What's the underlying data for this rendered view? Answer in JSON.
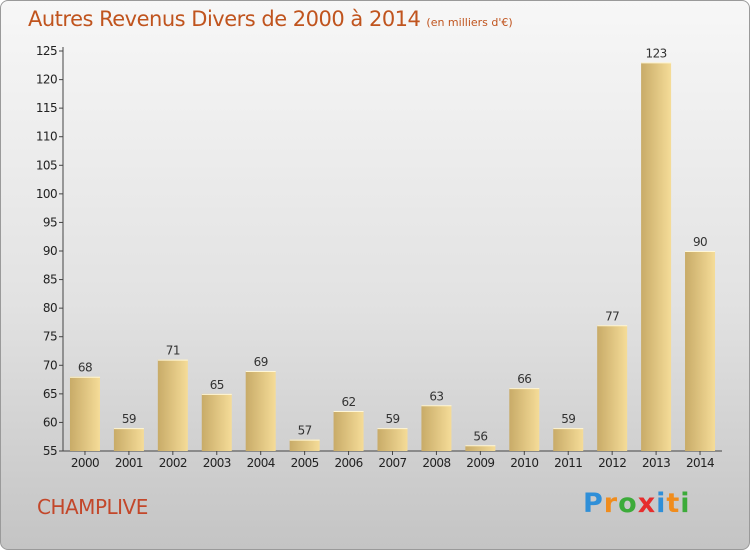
{
  "header": {
    "title": "Autres Revenus Divers de 2000 à 2014",
    "subtitle": "(en milliers d'€)"
  },
  "footer": {
    "commune": "CHAMPLIVE",
    "logo": [
      "P",
      "r",
      "o",
      "x",
      "i",
      "t",
      "i"
    ]
  },
  "colors": {
    "title": "#c0541e",
    "commune": "#c3472a",
    "bar_light": "#f5dc98",
    "bar_dark": "#c8ab68",
    "logo": [
      "#2f8fd8",
      "#f08c1c",
      "#3cab3a",
      "#e62d2d",
      "#2f8fd8",
      "#f08c1c",
      "#3cab3a"
    ]
  },
  "chart_data": {
    "type": "bar",
    "categories": [
      "2000",
      "2001",
      "2002",
      "2003",
      "2004",
      "2005",
      "2006",
      "2007",
      "2008",
      "2009",
      "2010",
      "2011",
      "2012",
      "2013",
      "2014"
    ],
    "values": [
      68,
      59,
      71,
      65,
      69,
      57,
      62,
      59,
      63,
      56,
      66,
      59,
      77,
      123,
      90
    ],
    "ylim": [
      55,
      125
    ],
    "yticks": [
      55,
      60,
      65,
      70,
      75,
      80,
      85,
      90,
      95,
      100,
      105,
      110,
      115,
      120,
      125
    ],
    "grid": false,
    "data_labels": true
  }
}
